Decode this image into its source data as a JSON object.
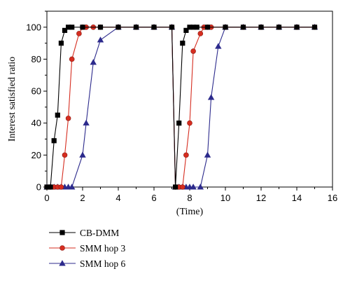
{
  "chart_data": {
    "type": "line",
    "xlabel": "(Time)",
    "ylabel": "Interest satisfied ratio",
    "xlim": [
      0,
      16
    ],
    "ylim": [
      0,
      110
    ],
    "x_ticks": [
      "0",
      "2",
      "4",
      "6",
      "8",
      "10",
      "12",
      "14",
      "16"
    ],
    "y_ticks": [
      "0",
      "20",
      "40",
      "60",
      "80",
      "100"
    ],
    "grid": false,
    "legend_position": "bottom-left",
    "series": [
      {
        "name": "CB-DMM",
        "color": "#000000",
        "marker": "square",
        "points": [
          [
            0,
            0
          ],
          [
            0.2,
            0
          ],
          [
            0.4,
            29
          ],
          [
            0.6,
            45
          ],
          [
            0.8,
            90
          ],
          [
            1.0,
            98
          ],
          [
            1.2,
            100
          ],
          [
            1.4,
            100
          ],
          [
            2.0,
            100
          ],
          [
            3.0,
            100
          ],
          [
            4.0,
            100
          ],
          [
            5.0,
            100
          ],
          [
            6.0,
            100
          ],
          [
            7.0,
            100
          ],
          [
            7.2,
            0
          ],
          [
            7.4,
            40
          ],
          [
            7.6,
            90
          ],
          [
            7.8,
            98
          ],
          [
            8.0,
            100
          ],
          [
            8.2,
            100
          ],
          [
            8.4,
            100
          ],
          [
            9.0,
            100
          ],
          [
            10.0,
            100
          ],
          [
            11.0,
            100
          ],
          [
            12.0,
            100
          ],
          [
            13.0,
            100
          ],
          [
            14.0,
            100
          ],
          [
            15.0,
            100
          ]
        ]
      },
      {
        "name": "SMM hop 3",
        "color": "#d62d20",
        "marker": "circle",
        "points": [
          [
            0,
            0
          ],
          [
            0.2,
            0
          ],
          [
            0.4,
            0
          ],
          [
            0.6,
            0
          ],
          [
            0.8,
            0
          ],
          [
            1.0,
            20
          ],
          [
            1.2,
            43
          ],
          [
            1.4,
            80
          ],
          [
            1.8,
            96
          ],
          [
            2.0,
            100
          ],
          [
            2.2,
            100
          ],
          [
            2.6,
            100
          ],
          [
            3.0,
            100
          ],
          [
            4.0,
            100
          ],
          [
            5.0,
            100
          ],
          [
            6.0,
            100
          ],
          [
            7.0,
            100
          ],
          [
            7.2,
            0
          ],
          [
            7.4,
            0
          ],
          [
            7.6,
            0
          ],
          [
            7.8,
            20
          ],
          [
            8.0,
            40
          ],
          [
            8.2,
            85
          ],
          [
            8.6,
            96
          ],
          [
            8.8,
            100
          ],
          [
            9.0,
            100
          ],
          [
            9.2,
            100
          ],
          [
            10.0,
            100
          ],
          [
            11.0,
            100
          ],
          [
            12.0,
            100
          ],
          [
            13.0,
            100
          ],
          [
            14.0,
            100
          ],
          [
            15.0,
            100
          ]
        ]
      },
      {
        "name": "SMM hop 6",
        "color": "#2c2a8c",
        "marker": "triangle",
        "points": [
          [
            0,
            0
          ],
          [
            0.2,
            0
          ],
          [
            0.4,
            0
          ],
          [
            0.6,
            0
          ],
          [
            0.8,
            0
          ],
          [
            1.0,
            0
          ],
          [
            1.2,
            0
          ],
          [
            1.4,
            0
          ],
          [
            2.0,
            20
          ],
          [
            2.2,
            40
          ],
          [
            2.6,
            78
          ],
          [
            3.0,
            92
          ],
          [
            4.0,
            100
          ],
          [
            5.0,
            100
          ],
          [
            6.0,
            100
          ],
          [
            7.0,
            100
          ],
          [
            7.2,
            0
          ],
          [
            7.4,
            0
          ],
          [
            7.6,
            0
          ],
          [
            7.8,
            0
          ],
          [
            8.0,
            0
          ],
          [
            8.2,
            0
          ],
          [
            8.6,
            0
          ],
          [
            9.0,
            20
          ],
          [
            9.2,
            56
          ],
          [
            9.6,
            88
          ],
          [
            10.0,
            100
          ],
          [
            11.0,
            100
          ],
          [
            12.0,
            100
          ],
          [
            13.0,
            100
          ],
          [
            14.0,
            100
          ],
          [
            15.0,
            100
          ]
        ]
      }
    ]
  }
}
